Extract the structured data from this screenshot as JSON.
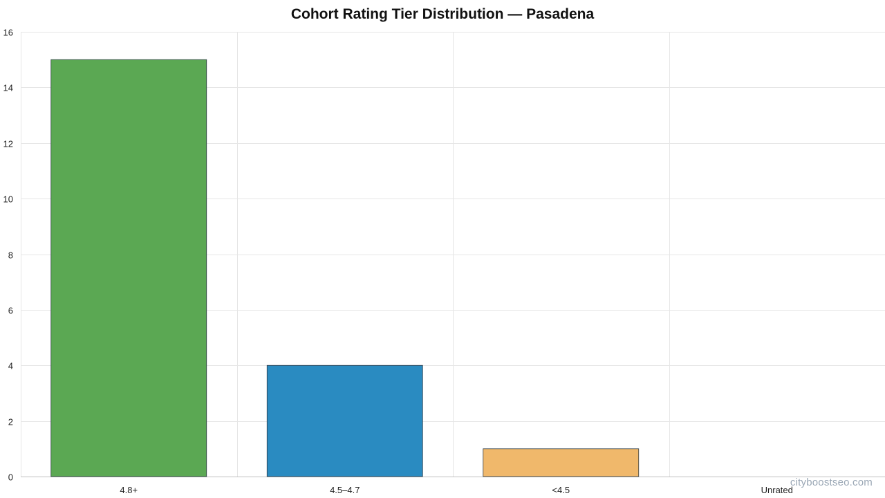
{
  "chart_data": {
    "type": "bar",
    "title": "Cohort Rating Tier Distribution — Pasadena",
    "categories": [
      "4.8+",
      "4.5–4.7",
      "<4.5",
      "Unrated"
    ],
    "values": [
      15,
      4,
      1,
      0
    ],
    "colors": [
      "#5ba853",
      "#2a8bc1",
      "#f0b86b",
      "#cccccc"
    ],
    "bar_border_color": "#2f3b45",
    "ylim": [
      0,
      16
    ],
    "yticks": [
      0,
      2,
      4,
      6,
      8,
      10,
      12,
      14,
      16
    ],
    "xlabel": "",
    "ylabel": "",
    "grid": true,
    "grid_color": "#e6e6e6",
    "legend": "none"
  },
  "watermark": "cityboostseo.com"
}
